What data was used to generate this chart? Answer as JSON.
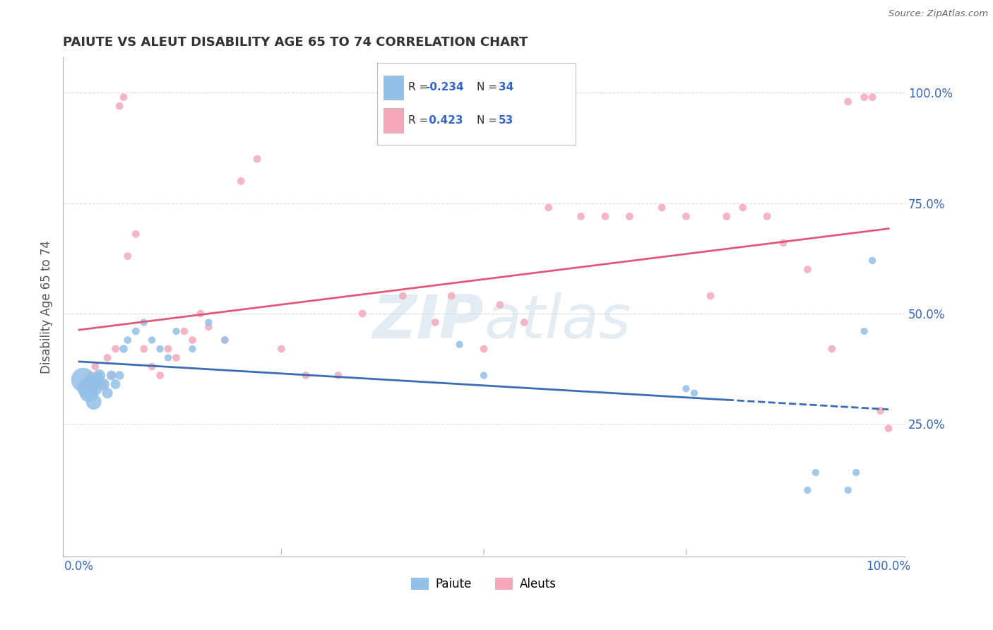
{
  "title": "PAIUTE VS ALEUT DISABILITY AGE 65 TO 74 CORRELATION CHART",
  "source": "Source: ZipAtlas.com",
  "ylabel": "Disability Age 65 to 74",
  "paiute_R": -0.234,
  "paiute_N": 34,
  "aleuts_R": 0.423,
  "aleuts_N": 53,
  "paiute_color": "#92C0E8",
  "aleuts_color": "#F5A8BA",
  "paiute_trend_color": "#3A6DB5",
  "aleuts_trend_color": "#E05878",
  "legend_label_paiute": "Paiute",
  "legend_label_aleuts": "Aleuts",
  "paiute_x": [
    0.5,
    1.0,
    1.2,
    1.5,
    1.8,
    2.0,
    2.2,
    2.5,
    3.0,
    3.5,
    4.0,
    4.5,
    5.0,
    5.5,
    6.0,
    7.0,
    8.0,
    9.0,
    10.0,
    11.0,
    12.0,
    14.0,
    16.0,
    18.0,
    47.0,
    50.0,
    75.0,
    76.0,
    90.0,
    91.0,
    95.0,
    96.0,
    97.0,
    98.0
  ],
  "paiute_y": [
    35.0,
    33.0,
    32.0,
    34.0,
    30.0,
    33.0,
    35.0,
    36.0,
    34.0,
    32.0,
    36.0,
    34.0,
    36.0,
    42.0,
    44.0,
    46.0,
    48.0,
    44.0,
    42.0,
    40.0,
    46.0,
    42.0,
    48.0,
    44.0,
    43.0,
    36.0,
    33.0,
    32.0,
    10.0,
    14.0,
    10.0,
    14.0,
    46.0,
    62.0
  ],
  "paiute_sizes": [
    600,
    400,
    350,
    300,
    250,
    200,
    200,
    150,
    150,
    120,
    100,
    100,
    80,
    70,
    60,
    60,
    55,
    55,
    55,
    55,
    55,
    55,
    55,
    55,
    55,
    55,
    55,
    55,
    55,
    55,
    55,
    55,
    55,
    55
  ],
  "aleuts_x": [
    0.5,
    1.0,
    1.5,
    2.0,
    2.5,
    3.0,
    3.5,
    4.0,
    4.5,
    5.0,
    5.5,
    6.0,
    7.0,
    8.0,
    9.0,
    10.0,
    11.0,
    12.0,
    13.0,
    14.0,
    15.0,
    16.0,
    18.0,
    20.0,
    22.0,
    25.0,
    28.0,
    32.0,
    35.0,
    40.0,
    44.0,
    46.0,
    50.0,
    52.0,
    55.0,
    58.0,
    62.0,
    65.0,
    68.0,
    72.0,
    75.0,
    78.0,
    80.0,
    82.0,
    85.0,
    87.0,
    90.0,
    93.0,
    95.0,
    97.0,
    98.0,
    99.0,
    100.0
  ],
  "aleuts_y": [
    33.0,
    35.0,
    36.0,
    38.0,
    36.0,
    34.0,
    40.0,
    36.0,
    42.0,
    97.0,
    99.0,
    63.0,
    68.0,
    42.0,
    38.0,
    36.0,
    42.0,
    40.0,
    46.0,
    44.0,
    50.0,
    47.0,
    44.0,
    80.0,
    85.0,
    42.0,
    36.0,
    36.0,
    50.0,
    54.0,
    48.0,
    54.0,
    42.0,
    52.0,
    48.0,
    74.0,
    72.0,
    72.0,
    72.0,
    74.0,
    72.0,
    54.0,
    72.0,
    74.0,
    72.0,
    66.0,
    60.0,
    42.0,
    98.0,
    99.0,
    99.0,
    28.0,
    24.0
  ],
  "aleuts_sizes": [
    60,
    60,
    60,
    60,
    60,
    60,
    60,
    60,
    60,
    60,
    60,
    60,
    60,
    60,
    60,
    60,
    60,
    60,
    60,
    60,
    60,
    60,
    60,
    60,
    60,
    60,
    60,
    60,
    60,
    60,
    60,
    60,
    60,
    60,
    60,
    60,
    60,
    60,
    60,
    60,
    60,
    60,
    60,
    60,
    60,
    60,
    60,
    60,
    60,
    60,
    60,
    60,
    60
  ],
  "xlim": [
    0,
    100
  ],
  "ylim": [
    0,
    105
  ],
  "background_color": "#FFFFFF",
  "grid_color": "#CCCCCC",
  "watermark_color": "#C8D8E8",
  "watermark_alpha": 0.5
}
